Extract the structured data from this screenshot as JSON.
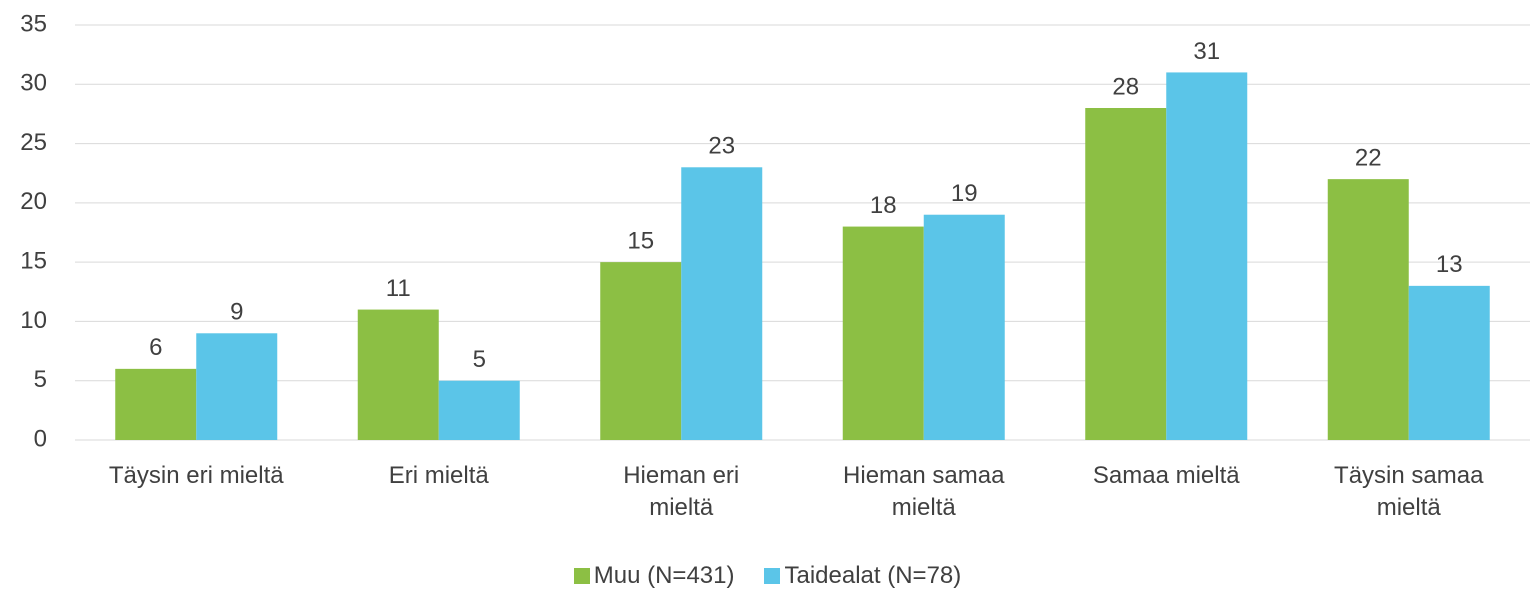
{
  "chart_data": {
    "type": "bar",
    "categories": [
      "Täysin eri mieltä",
      "Eri mieltä",
      "Hieman eri\nmieltä",
      "Hieman samaa\nmieltä",
      "Samaa mieltä",
      "Täysin samaa\nmieltä"
    ],
    "series": [
      {
        "name": "Muu (N=431)",
        "color": "#8cbf44",
        "values": [
          6,
          11,
          15,
          18,
          28,
          22
        ]
      },
      {
        "name": "Taidealat (N=78)",
        "color": "#5bc5e8",
        "values": [
          9,
          5,
          23,
          19,
          31,
          13
        ]
      }
    ],
    "ylim": [
      0,
      35
    ],
    "yticks": [
      0,
      5,
      10,
      15,
      20,
      25,
      30,
      35
    ],
    "grid": true,
    "legend": "bottom"
  }
}
